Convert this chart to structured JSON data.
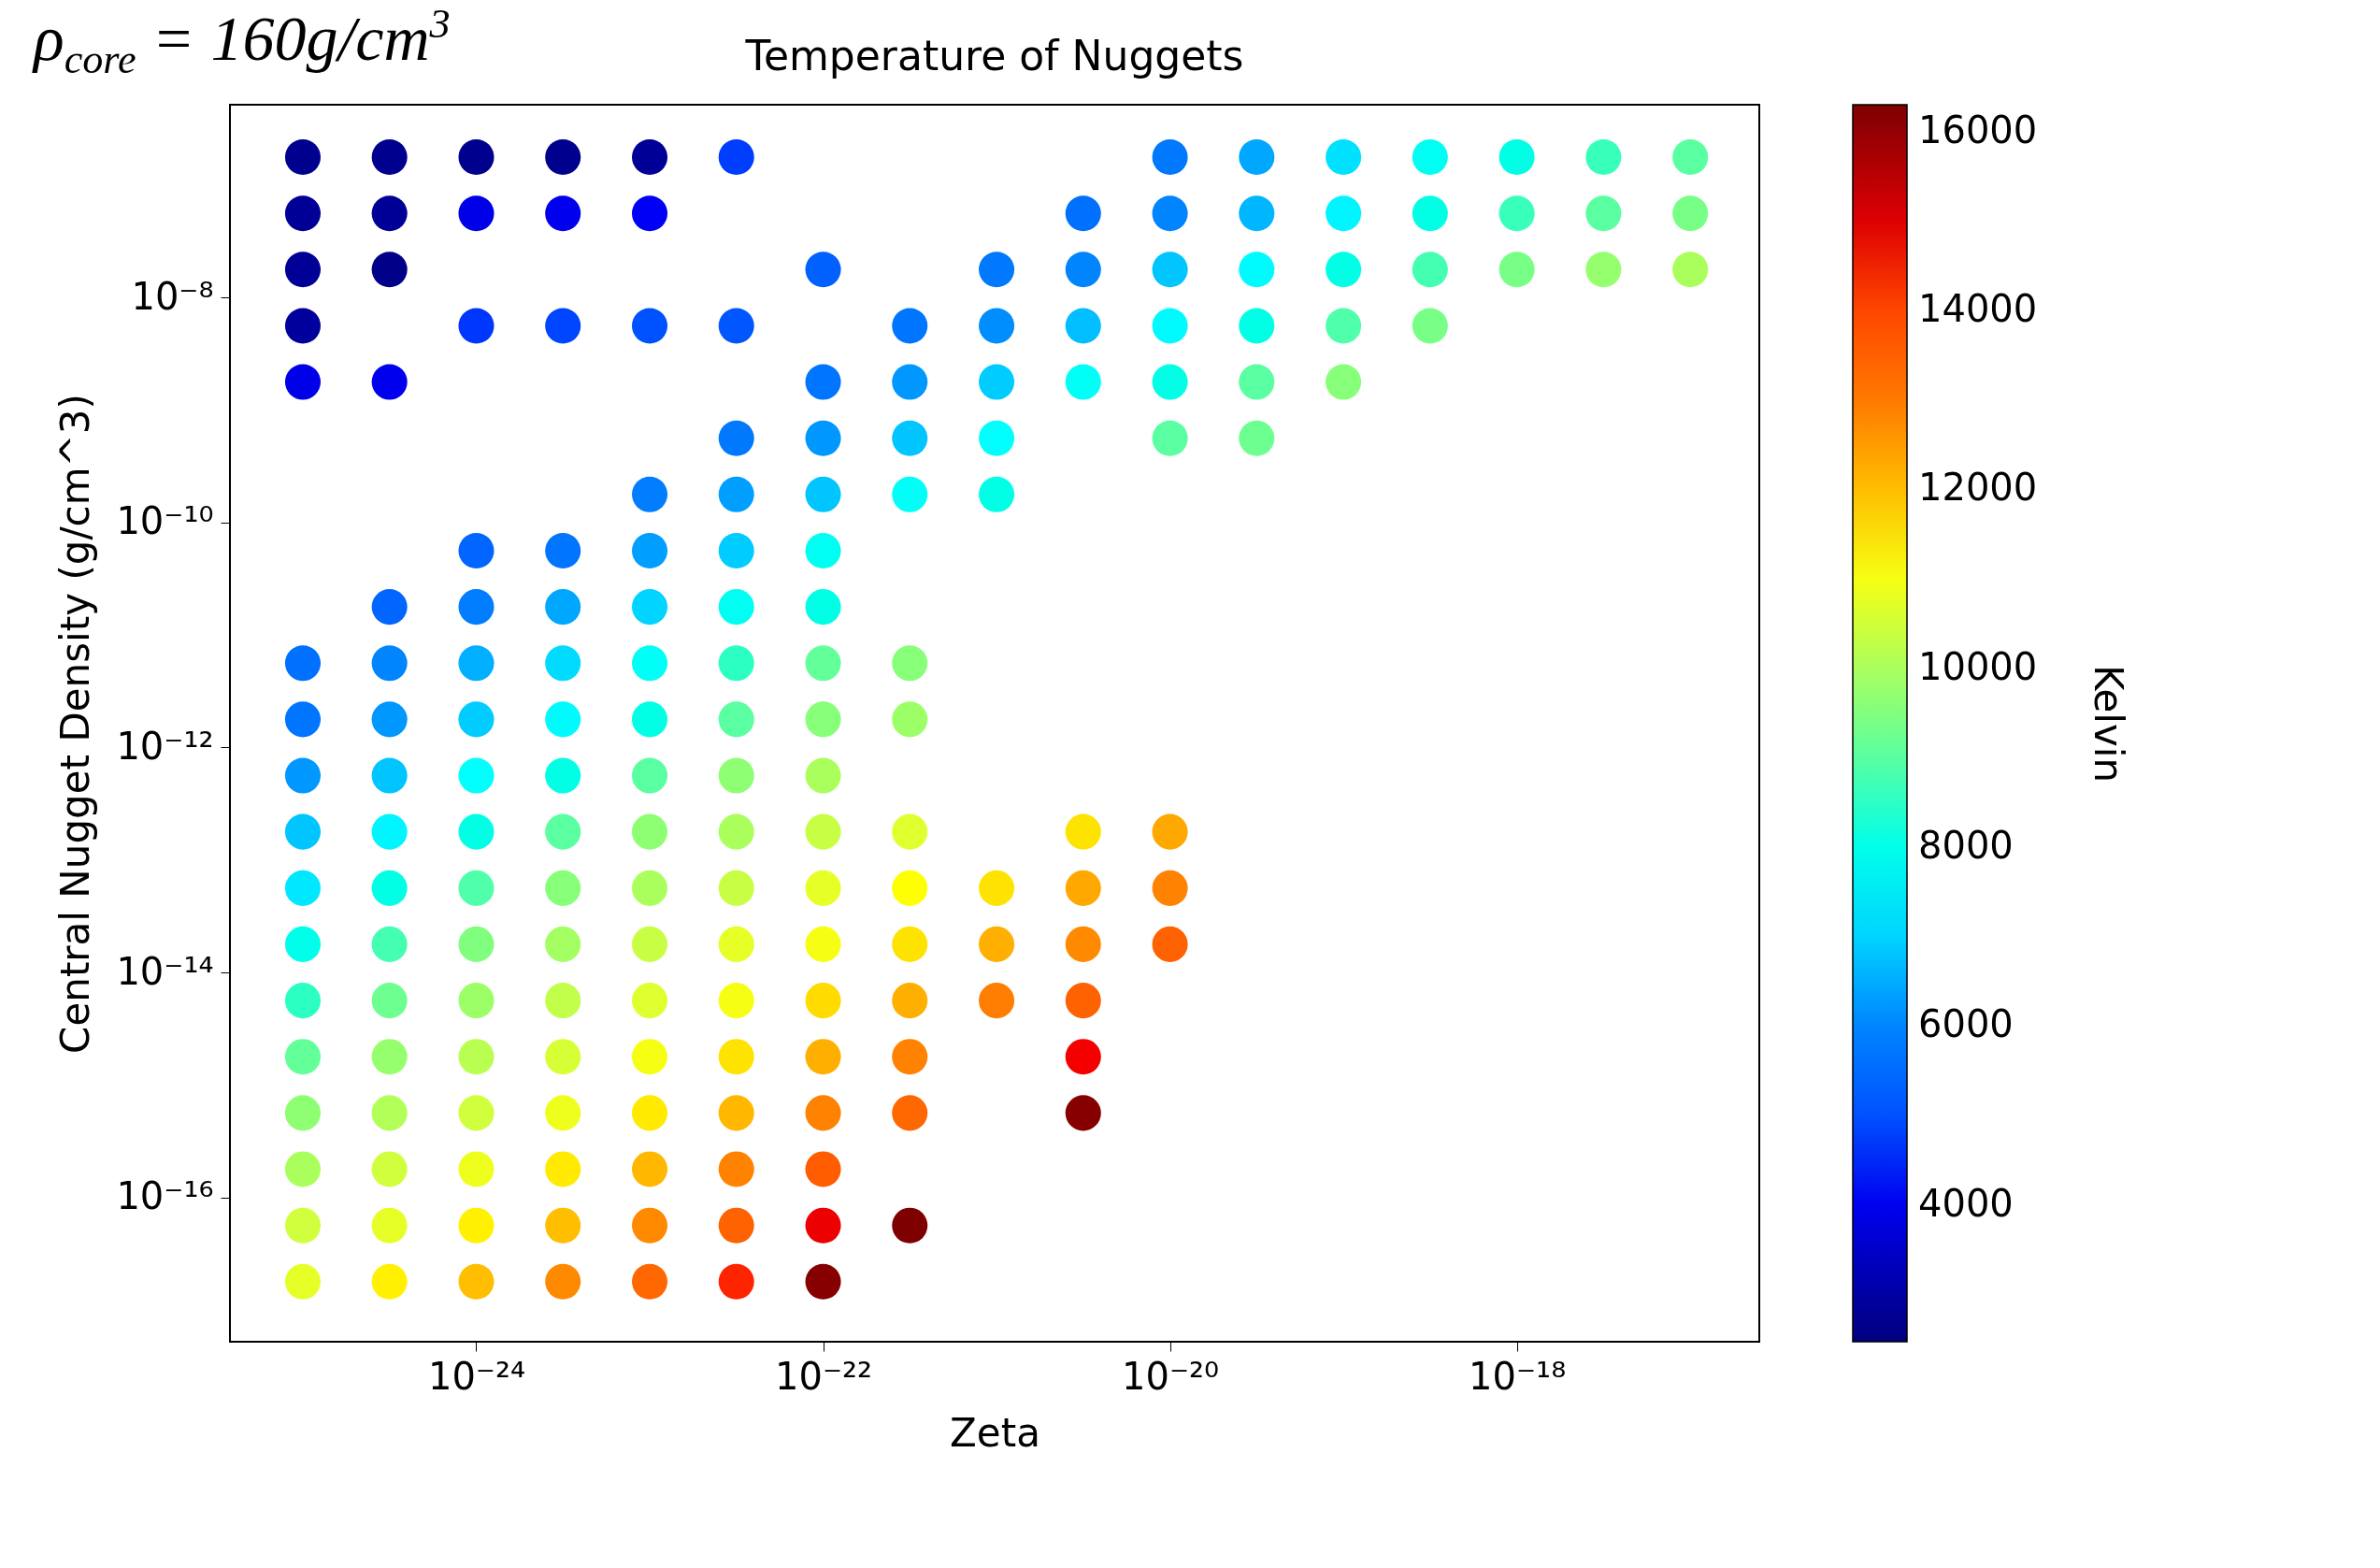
{
  "chart_data": {
    "type": "scatter",
    "title": "Temperature of Nuggets",
    "xlabel": "Zeta",
    "ylabel": "Central Nugget Density (g/cm^3)",
    "clabel": "Kelvin",
    "annotations": [
      "ρ$_{core}$ = 160g/cm$^{3}$"
    ],
    "log": "xy",
    "marker": "circle",
    "xlim": [
      3.8e-26,
      2.5e-17
    ],
    "ylim": [
      5.2e-18,
      5.2e-07
    ],
    "xticks": [
      {
        "value": 1e-24,
        "label": "10⁻²⁴"
      },
      {
        "value": 1e-22,
        "label": "10⁻²²"
      },
      {
        "value": 1e-20,
        "label": "10⁻²⁰"
      },
      {
        "value": 1e-18,
        "label": "10⁻¹⁸"
      }
    ],
    "yticks": [
      {
        "value": 1e-08,
        "label": "10⁻⁸"
      },
      {
        "value": 1e-10,
        "label": "10⁻¹⁰"
      },
      {
        "value": 1e-12,
        "label": "10⁻¹²"
      },
      {
        "value": 1e-14,
        "label": "10⁻¹⁴"
      },
      {
        "value": 1e-16,
        "label": "10⁻¹⁶"
      }
    ],
    "clim": [
      2470,
      16300
    ],
    "cticks": [
      4000,
      6000,
      8000,
      10000,
      12000,
      14000,
      16000
    ],
    "x": [
      1e-25,
      3.16e-25,
      1e-24,
      3.16e-24,
      1e-23,
      3.16e-23,
      1e-20,
      3.16e-20,
      1e-19,
      3.16e-19,
      1e-18,
      3.16e-18,
      1e-17,
      1e-25,
      3.16e-25,
      1e-24,
      3.16e-24,
      1e-23,
      3.16e-21,
      1e-20,
      3.16e-20,
      1e-19,
      3.16e-19,
      1e-18,
      3.16e-18,
      1e-17,
      1e-25,
      3.16e-25,
      1e-22,
      1e-21,
      3.16e-21,
      1e-20,
      3.16e-20,
      1e-19,
      3.16e-19,
      1e-18,
      3.16e-18,
      1e-17,
      1e-25,
      1e-24,
      3.16e-24,
      1e-23,
      3.16e-23,
      3.16e-22,
      1e-21,
      3.16e-21,
      1e-20,
      3.16e-20,
      1e-19,
      3.16e-19,
      1e-25,
      3.16e-25,
      1e-22,
      3.16e-22,
      1e-21,
      3.16e-21,
      1e-20,
      3.16e-20,
      1e-19,
      3.16e-23,
      1e-22,
      3.16e-22,
      1e-21,
      1e-20,
      3.16e-20,
      1e-23,
      3.16e-23,
      1e-22,
      3.16e-22,
      1e-21,
      1e-24,
      3.16e-24,
      1e-23,
      3.16e-23,
      1e-22,
      3.16e-25,
      1e-24,
      3.16e-24,
      1e-23,
      3.16e-23,
      1e-22,
      1e-25,
      3.16e-25,
      1e-24,
      3.16e-24,
      1e-23,
      3.16e-23,
      1e-22,
      3.16e-22,
      1e-25,
      3.16e-25,
      1e-24,
      3.16e-24,
      1e-23,
      3.16e-23,
      1e-22,
      3.16e-22,
      1e-25,
      3.16e-25,
      1e-24,
      3.16e-24,
      1e-23,
      3.16e-23,
      1e-22,
      1e-25,
      3.16e-25,
      1e-24,
      3.16e-24,
      1e-23,
      3.16e-23,
      1e-22,
      3.16e-22,
      3.16e-21,
      1e-20,
      1e-25,
      3.16e-25,
      1e-24,
      3.16e-24,
      1e-23,
      3.16e-23,
      1e-22,
      3.16e-22,
      1e-21,
      3.16e-21,
      1e-20,
      1e-25,
      3.16e-25,
      1e-24,
      3.16e-24,
      1e-23,
      3.16e-23,
      1e-22,
      3.16e-22,
      1e-21,
      3.16e-21,
      1e-20,
      1e-25,
      3.16e-25,
      1e-24,
      3.16e-24,
      1e-23,
      3.16e-23,
      1e-22,
      3.16e-22,
      1e-21,
      3.16e-21,
      1e-25,
      3.16e-25,
      1e-24,
      3.16e-24,
      1e-23,
      3.16e-23,
      1e-22,
      3.16e-22,
      3.16e-21,
      1e-25,
      3.16e-25,
      1e-24,
      3.16e-24,
      1e-23,
      3.16e-23,
      1e-22,
      3.16e-22,
      3.16e-21,
      1e-25,
      3.16e-25,
      1e-24,
      3.16e-24,
      1e-23,
      3.16e-23,
      1e-22,
      1e-25,
      3.16e-25,
      1e-24,
      3.16e-24,
      1e-23,
      3.16e-23,
      1e-22,
      3.16e-22,
      1e-25,
      3.16e-25,
      1e-24,
      3.16e-24,
      1e-23,
      3.16e-23,
      1e-22
    ],
    "values": [
      1.78e-07,
      1.78e-07,
      1.78e-07,
      1.78e-07,
      1.78e-07,
      1.78e-07,
      1.78e-07,
      1.78e-07,
      1.78e-07,
      1.78e-07,
      1.78e-07,
      1.78e-07,
      1.78e-07,
      5.62e-08,
      5.62e-08,
      5.62e-08,
      5.62e-08,
      5.62e-08,
      5.62e-08,
      5.62e-08,
      5.62e-08,
      5.62e-08,
      5.62e-08,
      5.62e-08,
      5.62e-08,
      5.62e-08,
      1.78e-08,
      1.78e-08,
      1.78e-08,
      1.78e-08,
      1.78e-08,
      1.78e-08,
      1.78e-08,
      1.78e-08,
      1.78e-08,
      1.78e-08,
      1.78e-08,
      1.78e-08,
      5.62e-09,
      5.62e-09,
      5.62e-09,
      5.62e-09,
      5.62e-09,
      5.62e-09,
      5.62e-09,
      5.62e-09,
      5.62e-09,
      5.62e-09,
      5.62e-09,
      5.62e-09,
      1.78e-09,
      1.78e-09,
      1.78e-09,
      1.78e-09,
      1.78e-09,
      1.78e-09,
      1.78e-09,
      1.78e-09,
      1.78e-09,
      5.62e-10,
      5.62e-10,
      5.62e-10,
      5.62e-10,
      5.62e-10,
      5.62e-10,
      1.78e-10,
      1.78e-10,
      1.78e-10,
      1.78e-10,
      1.78e-10,
      5.62e-11,
      5.62e-11,
      5.62e-11,
      5.62e-11,
      5.62e-11,
      1.78e-11,
      1.78e-11,
      1.78e-11,
      1.78e-11,
      1.78e-11,
      1.78e-11,
      5.62e-12,
      5.62e-12,
      5.62e-12,
      5.62e-12,
      5.62e-12,
      5.62e-12,
      5.62e-12,
      5.62e-12,
      1.78e-12,
      1.78e-12,
      1.78e-12,
      1.78e-12,
      1.78e-12,
      1.78e-12,
      1.78e-12,
      1.78e-12,
      5.62e-13,
      5.62e-13,
      5.62e-13,
      5.62e-13,
      5.62e-13,
      5.62e-13,
      5.62e-13,
      1.78e-13,
      1.78e-13,
      1.78e-13,
      1.78e-13,
      1.78e-13,
      1.78e-13,
      1.78e-13,
      1.78e-13,
      1.78e-13,
      1.78e-13,
      5.62e-14,
      5.62e-14,
      5.62e-14,
      5.62e-14,
      5.62e-14,
      5.62e-14,
      5.62e-14,
      5.62e-14,
      5.62e-14,
      5.62e-14,
      5.62e-14,
      1.78e-14,
      1.78e-14,
      1.78e-14,
      1.78e-14,
      1.78e-14,
      1.78e-14,
      1.78e-14,
      1.78e-14,
      1.78e-14,
      1.78e-14,
      1.78e-14,
      5.62e-15,
      5.62e-15,
      5.62e-15,
      5.62e-15,
      5.62e-15,
      5.62e-15,
      5.62e-15,
      5.62e-15,
      5.62e-15,
      5.62e-15,
      1.78e-15,
      1.78e-15,
      1.78e-15,
      1.78e-15,
      1.78e-15,
      1.78e-15,
      1.78e-15,
      1.78e-15,
      1.78e-15,
      5.62e-16,
      5.62e-16,
      5.62e-16,
      5.62e-16,
      5.62e-16,
      5.62e-16,
      5.62e-16,
      5.62e-16,
      5.62e-16,
      1.78e-16,
      1.78e-16,
      1.78e-16,
      1.78e-16,
      1.78e-16,
      1.78e-16,
      1.78e-16,
      5.62e-17,
      5.62e-17,
      5.62e-17,
      5.62e-17,
      5.62e-17,
      5.62e-17,
      5.62e-17,
      5.62e-17,
      1.78e-17,
      1.78e-17,
      1.78e-17,
      1.78e-17,
      1.78e-17,
      1.78e-17,
      1.78e-17
    ],
    "cvalues": [
      2700,
      2700,
      2700,
      2700,
      2800,
      4700,
      5800,
      6400,
      7200,
      7900,
      8100,
      8700,
      9000,
      2800,
      2800,
      3900,
      4000,
      4100,
      5600,
      6000,
      6600,
      7500,
      8100,
      8700,
      9000,
      9300,
      2800,
      2600,
      5300,
      5800,
      6000,
      6800,
      7600,
      8100,
      8800,
      9300,
      9700,
      10000,
      2900,
      4600,
      4800,
      5000,
      5100,
      5700,
      6100,
      6700,
      7600,
      8100,
      8900,
      9300,
      3900,
      4000,
      5700,
      6200,
      6900,
      7800,
      8100,
      9000,
      9500,
      5800,
      6200,
      6800,
      7700,
      9000,
      9200,
      5900,
      6300,
      6800,
      7800,
      8100,
      5400,
      5700,
      6300,
      6900,
      7900,
      5400,
      5900,
      6400,
      7000,
      7900,
      8100,
      5600,
      6000,
      6500,
      7100,
      7800,
      8600,
      9100,
      9500,
      5700,
      6200,
      6900,
      7600,
      8100,
      9000,
      9500,
      9800,
      6200,
      6800,
      7700,
      8100,
      9000,
      9600,
      10000,
      6800,
      7500,
      8100,
      9000,
      9600,
      10000,
      10400,
      10700,
      11500,
      12300,
      7300,
      8100,
      8900,
      9500,
      10000,
      10400,
      10800,
      11100,
      11500,
      12300,
      12800,
      8000,
      8800,
      9400,
      9900,
      10400,
      10800,
      11000,
      11500,
      12200,
      12700,
      13500,
      8600,
      9200,
      9800,
      10300,
      10700,
      11000,
      11600,
      12200,
      12900,
      13500,
      9100,
      9700,
      10200,
      10600,
      11000,
      11500,
      12200,
      12800,
      14700,
      9600,
      10100,
      10500,
      10900,
      11400,
      12100,
      12800,
      13400,
      16200,
      10000,
      10500,
      10900,
      11400,
      12100,
      12800,
      13600,
      10500,
      10800,
      11300,
      12000,
      12700,
      13500,
      14800,
      16300,
      10800,
      11300,
      12000,
      12700,
      13400,
      14400,
      16200
    ]
  }
}
